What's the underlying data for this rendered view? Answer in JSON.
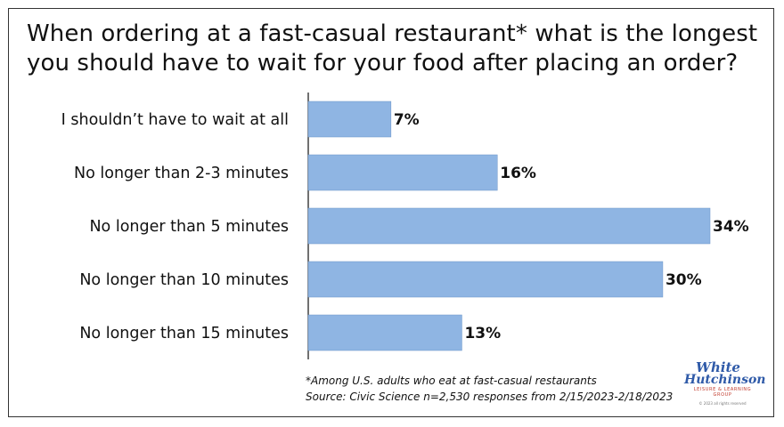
{
  "chart_data": {
    "type": "bar",
    "orientation": "horizontal",
    "title": "When ordering at a fast-casual restaurant* what is the longest you should have to wait for your food after placing an order?",
    "title_lines": [
      "When ordering at a fast-casual restaurant* what is the longest",
      "you should have to wait for your food after placing an order?"
    ],
    "categories": [
      "I shouldn’t have to wait at all",
      "No longer than 2-3 minutes",
      "No longer than 5 minutes",
      "No longer than 10 minutes",
      "No longer than 15 minutes"
    ],
    "values": [
      7,
      16,
      34,
      30,
      13
    ],
    "value_labels": [
      "7%",
      "16%",
      "34%",
      "30%",
      "13%"
    ],
    "unit": "%",
    "xlim": [
      0,
      34
    ],
    "grid": false,
    "bar_color": "#8fb5e3"
  },
  "footnotes": {
    "note": "*Among U.S. adults who eat at fast-casual restaurants",
    "source": "Source: Civic Science n=2,530 responses from 2/15/2023-2/18/2023"
  },
  "logo": {
    "line1": "White",
    "line2": "Hutchinson",
    "tagline": "LEISURE & LEARNING GROUP",
    "copyright": "© 2023 all rights reserved"
  }
}
